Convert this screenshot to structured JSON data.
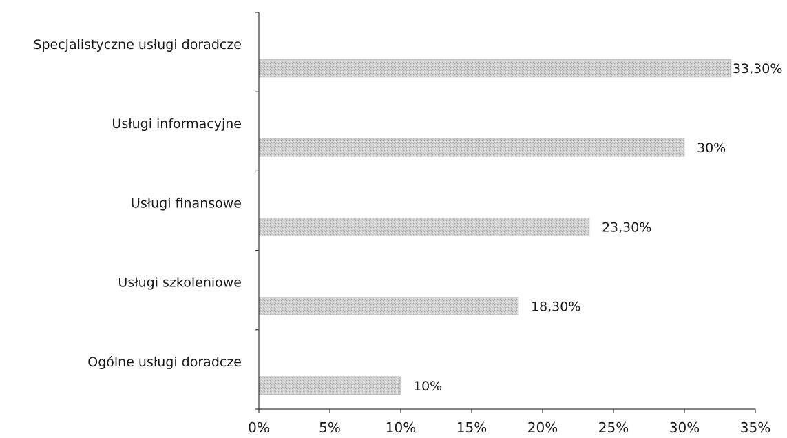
{
  "chart_data": {
    "type": "bar",
    "orientation": "horizontal",
    "categories": [
      "Specjalistyczne usługi doradcze",
      "Usługi informacyjne",
      "Usługi finansowe",
      "Usługi szkoleniowe",
      "Ogólne usługi doradcze"
    ],
    "values": [
      33.3,
      30,
      23.3,
      18.3,
      10
    ],
    "data_labels": [
      "33,30%",
      "30%",
      "23,30%",
      "18,30%",
      "10%"
    ],
    "xlim": [
      0,
      35
    ],
    "x_ticks": [
      0,
      5,
      10,
      15,
      20,
      25,
      30,
      35
    ],
    "x_tick_labels": [
      "0%",
      "5%",
      "10%",
      "15%",
      "20%",
      "25%",
      "30%",
      "35%"
    ],
    "title": "",
    "xlabel": "",
    "ylabel": "",
    "grid": false,
    "legend": "none",
    "bar_color": "#c8c8c8"
  }
}
